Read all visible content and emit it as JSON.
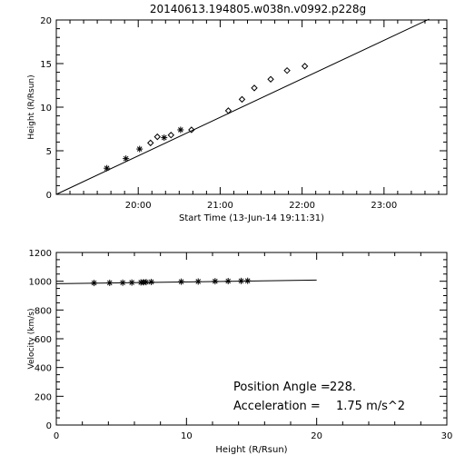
{
  "chart_data": [
    {
      "type": "scatter",
      "title": "20140613.194805.w038n.v0992.p228g",
      "xlabel": "Start Time (13-Jun-14 19:11:31)",
      "ylabel": "Height (R/Rsun)",
      "x_ticks": [
        "20:00",
        "21:00",
        "22:00",
        "23:00"
      ],
      "x_tick_minutes": [
        60,
        120,
        180,
        240
      ],
      "x_range_minutes": [
        0,
        286
      ],
      "y_ticks": [
        "0",
        "5",
        "10",
        "15",
        "20"
      ],
      "ylim": [
        0,
        20
      ],
      "series": [
        {
          "marker": "asterisk",
          "x_minutes": [
            37,
            51,
            61,
            79,
            91
          ],
          "y": [
            3.0,
            4.1,
            5.2,
            6.5,
            7.4
          ]
        },
        {
          "marker": "diamond",
          "x_minutes": [
            69,
            74,
            84,
            99,
            126,
            136,
            145,
            157,
            169,
            182
          ],
          "y": [
            5.9,
            6.6,
            6.8,
            7.4,
            9.6,
            10.9,
            12.2,
            13.2,
            14.2,
            14.7
          ]
        }
      ],
      "fit_line": {
        "x_minutes": [
          0,
          273
        ],
        "y": [
          0,
          20.1
        ]
      }
    },
    {
      "type": "scatter",
      "xlabel": "Height (R/Rsun)",
      "ylabel": "Velocity (km/s)",
      "x_ticks": [
        "0",
        "10",
        "20",
        "30"
      ],
      "xlim": [
        0,
        30
      ],
      "y_ticks": [
        "0",
        "200",
        "400",
        "600",
        "800",
        "1000",
        "1200"
      ],
      "ylim": [
        0,
        1200
      ],
      "series": [
        {
          "marker": "asterisk",
          "x": [
            2.9,
            4.1,
            5.1,
            5.8,
            6.5,
            6.7,
            6.9,
            7.3,
            9.6,
            10.9,
            12.2,
            13.2,
            14.2,
            14.7
          ],
          "y": [
            988,
            989,
            990,
            991,
            992,
            993,
            994,
            995,
            997,
            998,
            1000,
            1001,
            1002,
            1003
          ]
        }
      ],
      "fit_line": {
        "x": [
          0,
          20
        ],
        "y": [
          983,
          1008
        ]
      },
      "annotation": {
        "angle_label": "Position Angle =",
        "angle_value": "228.",
        "accel_label": "Acceleration =",
        "accel_value": "1.75 m/s^2"
      }
    }
  ]
}
